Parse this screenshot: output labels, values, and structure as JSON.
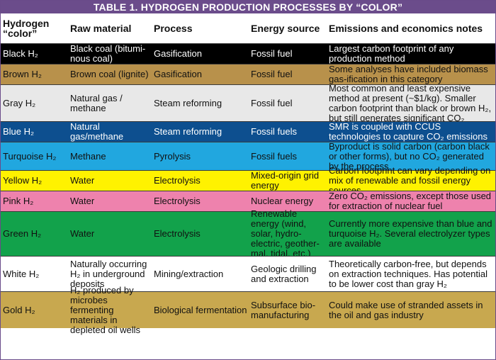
{
  "title": "TABLE 1. HYDROGEN PRODUCTION PROCESSES BY “COLOR”",
  "headers": [
    "Hydrogen “color”",
    "Raw material",
    "Process",
    "Energy source",
    "Emissions and economics notes"
  ],
  "rows": [
    {
      "color": "Black H₂",
      "raw": "Black coal (bitumi-nous coal)",
      "process": "Gasification",
      "energy": "Fossil fuel",
      "notes": "Largest carbon footprint of any production method",
      "bg": "#000000",
      "text": "#ffffff"
    },
    {
      "color": "Brown H₂",
      "raw": "Brown coal (lignite)",
      "process": "Gasification",
      "energy": "Fossil fuel",
      "notes": "Some analyses have included biomass gas-ification in this category",
      "bg": "#b8914b",
      "text": "#111111"
    },
    {
      "color": "Gray H₂",
      "raw": "Natural gas / methane",
      "process": "Steam reforming",
      "energy": "Fossil fuel",
      "notes": "Most common and least expensive method at present (~$1/kg). Smaller carbon footprint than black or brown H₂, but still generates significant CO₂",
      "bg": "#e8e8e8",
      "text": "#111111"
    },
    {
      "color": "Blue H₂",
      "raw": "Natural gas/methane",
      "process": "Steam reforming",
      "energy": "Fossil fuels",
      "notes": "SMR is coupled with CCUS technologies to capture CO₂ emissions",
      "bg": "#0d4f8f",
      "text": "#ffffff"
    },
    {
      "color": "Turquoise H₂",
      "raw": "Methane",
      "process": "Pyrolysis",
      "energy": "Fossil fuels",
      "notes": "Byproduct is solid carbon (carbon black or other forms), but no CO₂ generated by the process",
      "bg": "#21a7df",
      "text": "#111111"
    },
    {
      "color": "Yellow H₂",
      "raw": "Water",
      "process": "Electrolysis",
      "energy": "Mixed-origin grid energy",
      "notes": "Carbon footprint can vary depending on mix of renewable and fossil energy sources",
      "bg": "#fff200",
      "text": "#111111"
    },
    {
      "color": "Pink H₂",
      "raw": "Water",
      "process": "Electrolysis",
      "energy": "Nuclear energy",
      "notes": "Zero CO₂ emissions, except those used for extraction of nuclear fuel",
      "bg": "#ee82ad",
      "text": "#111111"
    },
    {
      "color": "Green H₂",
      "raw": "Water",
      "process": "Electrolysis",
      "energy": "Renewable energy (wind, solar, hydro-electric, geother-mal, tidal, etc.)",
      "notes": "Currently more expensive than blue and turquoise H₂. Several electrolyzer types are available",
      "bg": "#12a24b",
      "text": "#111111"
    },
    {
      "color": "White H₂",
      "raw": "Naturally occurring H₂ in underground deposits",
      "process": "Mining/extraction",
      "energy": "Geologic drilling and extraction",
      "notes": "Theoretically carbon-free, but depends on extraction techniques. Has potential to be lower cost than gray H₂",
      "bg": "#ffffff",
      "text": "#111111"
    },
    {
      "color": "Gold H₂",
      "raw": "H₂ produced by microbes fermenting materials in depleted oil wells",
      "process": "Biological fermentation",
      "energy": "Subsurface bio-manufacturing",
      "notes": "Could make use of stranded assets in the oil and gas industry",
      "bg": "#c8a84f",
      "text": "#111111"
    }
  ]
}
